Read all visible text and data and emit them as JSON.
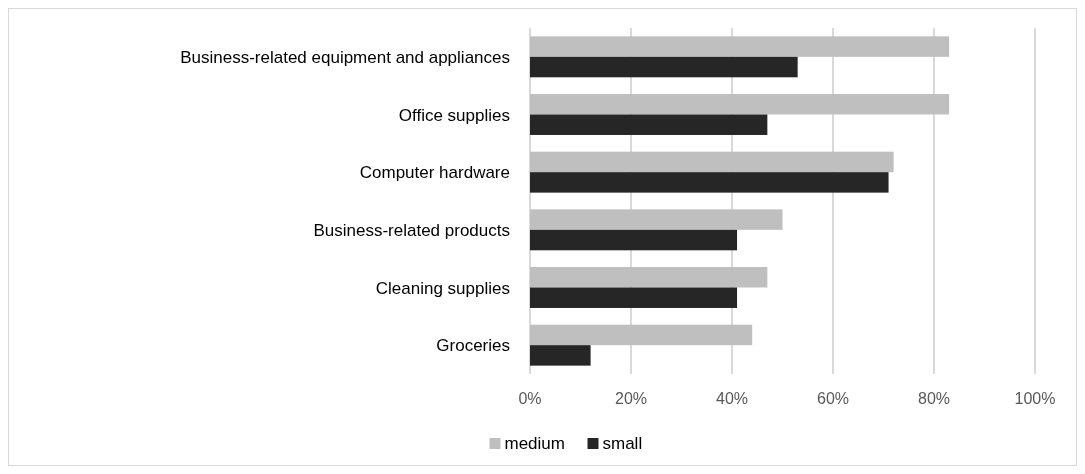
{
  "chart_data": {
    "type": "bar",
    "orientation": "horizontal",
    "categories": [
      "Business-related equipment and appliances",
      "Office supplies",
      "Computer hardware",
      "Business-related products",
      "Cleaning supplies",
      "Groceries"
    ],
    "series": [
      {
        "name": "medium",
        "color": "#bfbfbf",
        "values": [
          83,
          83,
          72,
          50,
          47,
          44
        ]
      },
      {
        "name": "small",
        "color": "#262626",
        "values": [
          53,
          47,
          71,
          41,
          41,
          12
        ]
      }
    ],
    "xlim": [
      0,
      100
    ],
    "xticks": [
      {
        "value": 0,
        "label": "0%"
      },
      {
        "value": 20,
        "label": "20%"
      },
      {
        "value": 40,
        "label": "40%"
      },
      {
        "value": 60,
        "label": "60%"
      },
      {
        "value": 80,
        "label": "80%"
      },
      {
        "value": 100,
        "label": "100%"
      }
    ],
    "grid": "x",
    "legend": "bottom"
  }
}
